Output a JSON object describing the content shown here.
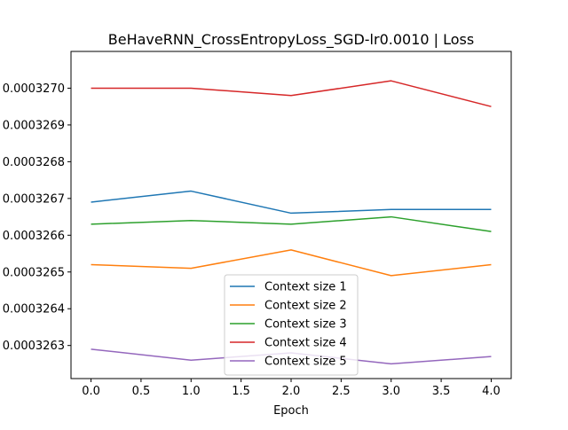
{
  "chart_data": {
    "type": "line",
    "title": "BeHaveRNN_CrossEntropyLoss_SGD-lr0.0010 | Loss",
    "xlabel": "Epoch",
    "ylabel": "",
    "x": [
      0,
      1,
      2,
      3,
      4
    ],
    "xlim": [
      -0.2,
      4.2
    ],
    "ylim": [
      0.00032621,
      0.0003271
    ],
    "x_ticks": [
      {
        "value": 0.0,
        "label": "0.0"
      },
      {
        "value": 0.5,
        "label": "0.5"
      },
      {
        "value": 1.0,
        "label": "1.0"
      },
      {
        "value": 1.5,
        "label": "1.5"
      },
      {
        "value": 2.0,
        "label": "2.0"
      },
      {
        "value": 2.5,
        "label": "2.5"
      },
      {
        "value": 3.0,
        "label": "3.0"
      },
      {
        "value": 3.5,
        "label": "3.5"
      },
      {
        "value": 4.0,
        "label": "4.0"
      }
    ],
    "y_ticks": [
      {
        "value": 0.0003263,
        "label": "0.0003263"
      },
      {
        "value": 0.0003264,
        "label": "0.0003264"
      },
      {
        "value": 0.0003265,
        "label": "0.0003265"
      },
      {
        "value": 0.0003266,
        "label": "0.0003266"
      },
      {
        "value": 0.0003267,
        "label": "0.0003267"
      },
      {
        "value": 0.0003268,
        "label": "0.0003268"
      },
      {
        "value": 0.0003269,
        "label": "0.0003269"
      },
      {
        "value": 0.000327,
        "label": "0.0003270"
      }
    ],
    "grid": false,
    "legend_position": "lower center",
    "series": [
      {
        "name": "Context size 1",
        "color": "#1f77b4",
        "values": [
          0.00032669,
          0.00032672,
          0.00032666,
          0.00032667,
          0.00032667
        ]
      },
      {
        "name": "Context size 2",
        "color": "#ff7f0e",
        "values": [
          0.00032652,
          0.00032651,
          0.00032656,
          0.00032649,
          0.00032652
        ]
      },
      {
        "name": "Context size 3",
        "color": "#2ca02c",
        "values": [
          0.00032663,
          0.00032664,
          0.00032663,
          0.00032665,
          0.00032661
        ]
      },
      {
        "name": "Context size 4",
        "color": "#d62728",
        "values": [
          0.000327,
          0.000327,
          0.00032698,
          0.00032702,
          0.00032695
        ]
      },
      {
        "name": "Context size 5",
        "color": "#9467bd",
        "values": [
          0.00032629,
          0.00032626,
          0.00032628,
          0.00032625,
          0.00032627
        ]
      }
    ]
  }
}
